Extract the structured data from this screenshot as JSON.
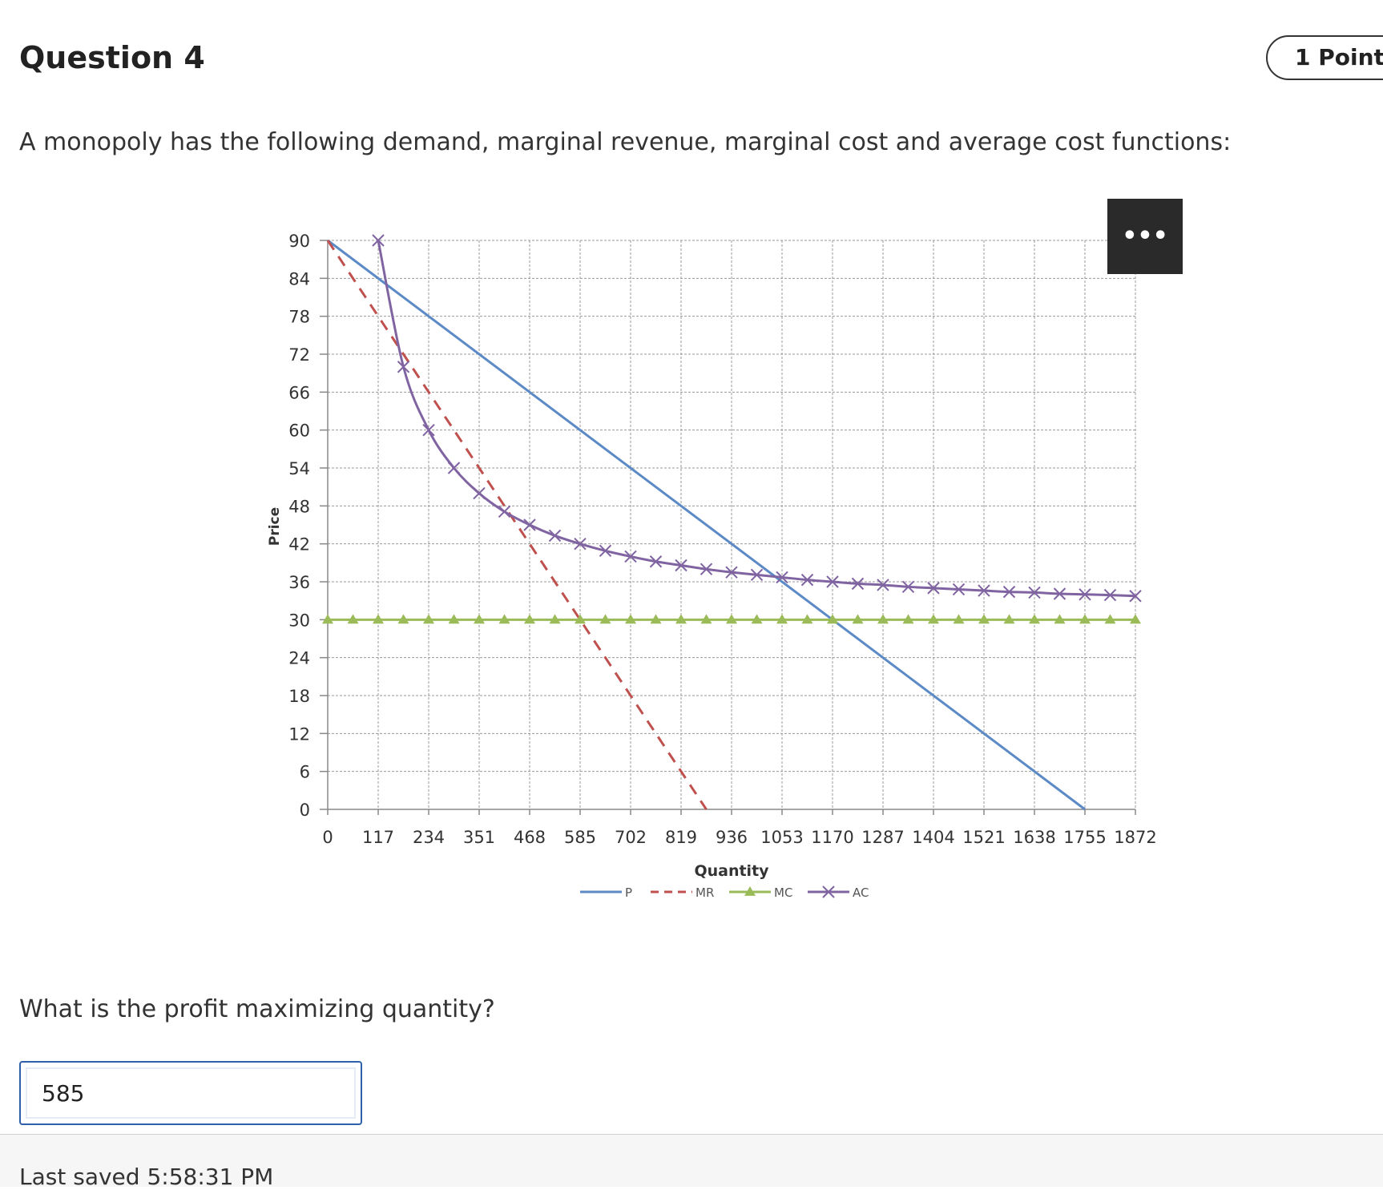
{
  "question": {
    "title": "Question 4",
    "points": "1 Point",
    "prompt": "A monopoly has the following demand, marginal revenue, marginal cost and average cost functions:",
    "ask": "What is the profit maximizing quantity?",
    "answer_value": "585",
    "more_label": "•••"
  },
  "footer": {
    "last_saved": "Last saved 5:58:31 PM"
  },
  "colors": {
    "P": "#5b8ac6",
    "MR": "#c0504d",
    "MC": "#9bbb59",
    "AC": "#8064a2"
  },
  "chart_data": {
    "type": "line",
    "title": "",
    "xlabel": "Quantity",
    "ylabel": "Price",
    "xlim": [
      0,
      1872
    ],
    "ylim": [
      0,
      90
    ],
    "xticks": [
      0,
      117,
      234,
      351,
      468,
      585,
      702,
      819,
      936,
      1053,
      1170,
      1287,
      1404,
      1521,
      1638,
      1755,
      1872
    ],
    "yticks": [
      0,
      6,
      12,
      18,
      24,
      30,
      36,
      42,
      48,
      54,
      60,
      66,
      72,
      78,
      84,
      90
    ],
    "grid": true,
    "legend": "bottom",
    "series": [
      {
        "name": "P",
        "style": "solid",
        "marker": "none",
        "x": [
          0,
          1755
        ],
        "y": [
          90,
          0
        ]
      },
      {
        "name": "MR",
        "style": "dashed",
        "marker": "none",
        "x": [
          0,
          877.5
        ],
        "y": [
          90,
          0
        ]
      },
      {
        "name": "MC",
        "style": "solid",
        "marker": "triangle",
        "x": [
          0,
          58.5,
          117,
          175.5,
          234,
          292.5,
          351,
          409.5,
          468,
          526.5,
          585,
          643.5,
          702,
          760.5,
          819,
          877.5,
          936,
          994.5,
          1053,
          1111.5,
          1170,
          1228.5,
          1287,
          1345.5,
          1404,
          1462.5,
          1521,
          1579.5,
          1638,
          1696.5,
          1755,
          1813.5,
          1872
        ],
        "y": [
          30,
          30,
          30,
          30,
          30,
          30,
          30,
          30,
          30,
          30,
          30,
          30,
          30,
          30,
          30,
          30,
          30,
          30,
          30,
          30,
          30,
          30,
          30,
          30,
          30,
          30,
          30,
          30,
          30,
          30,
          30,
          30,
          30
        ]
      },
      {
        "name": "AC",
        "style": "solid",
        "marker": "x",
        "x": [
          117,
          175.5,
          234,
          292.5,
          351,
          409.5,
          468,
          526.5,
          585,
          643.5,
          702,
          760.5,
          819,
          877.5,
          936,
          994.5,
          1053,
          1111.5,
          1170,
          1228.5,
          1287,
          1345.5,
          1404,
          1462.5,
          1521,
          1579.5,
          1638,
          1696.5,
          1755,
          1813.5,
          1872
        ],
        "y": [
          90,
          70,
          60,
          54,
          50,
          47.1,
          45,
          43.3,
          42,
          40.9,
          40,
          39.2,
          38.6,
          38,
          37.5,
          37.1,
          36.7,
          36.3,
          36,
          35.7,
          35.5,
          35.2,
          35,
          34.8,
          34.6,
          34.4,
          34.3,
          34.1,
          34,
          33.9,
          33.75
        ]
      }
    ]
  }
}
